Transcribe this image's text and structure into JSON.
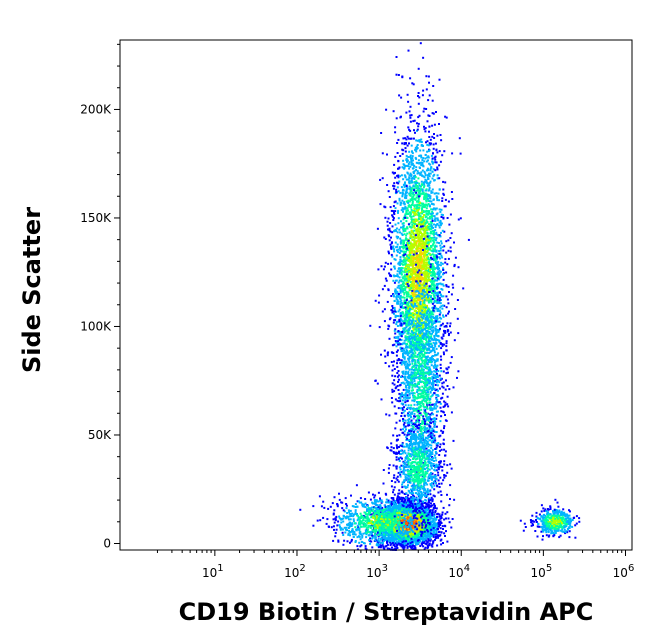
{
  "chart_data": {
    "type": "scatter",
    "title": "",
    "xlabel": "CD19 Biotin / Streptavidin APC",
    "ylabel": "Side Scatter",
    "x_scale": "log",
    "xlim": [
      0.7,
      1200000
    ],
    "ylim": [
      -3000,
      232000
    ],
    "x_ticks": [
      {
        "value": 10,
        "base": "10",
        "exp": "1"
      },
      {
        "value": 100,
        "base": "10",
        "exp": "2"
      },
      {
        "value": 1000,
        "base": "10",
        "exp": "3"
      },
      {
        "value": 10000,
        "base": "10",
        "exp": "4"
      },
      {
        "value": 100000,
        "base": "10",
        "exp": "5"
      },
      {
        "value": 1000000,
        "base": "10",
        "exp": "6"
      }
    ],
    "y_ticks": [
      {
        "value": 0,
        "label": "0"
      },
      {
        "value": 50000,
        "label": "50K"
      },
      {
        "value": 100000,
        "label": "100K"
      },
      {
        "value": 150000,
        "label": "150K"
      },
      {
        "value": 200000,
        "label": "200K"
      }
    ],
    "grid": false,
    "legend": "none",
    "color_scale": [
      "#0000ff",
      "#00b4ff",
      "#00ffa0",
      "#b4ff00",
      "#ffd000",
      "#ff6000",
      "#e00000"
    ],
    "populations": [
      {
        "name": "",
        "x_center": 2200,
        "y_center": 9000,
        "x_spread_decades": 0.17,
        "y_spread": 4500,
        "count": 3800,
        "peak_level": 1.0
      },
      {
        "name": "",
        "x_center": 1000,
        "y_center": 10000,
        "x_spread_decades": 0.28,
        "y_spread": 6000,
        "count": 900,
        "peak_level": 0.45
      },
      {
        "name": "",
        "x_center": 3000,
        "y_center": 125000,
        "x_spread_decades": 0.16,
        "y_spread": 32000,
        "count": 3600,
        "peak_level": 0.65
      },
      {
        "name": "",
        "x_center": 3200,
        "y_center": 70000,
        "x_spread_decades": 0.15,
        "y_spread": 30000,
        "count": 1200,
        "peak_level": 0.35
      },
      {
        "name": "",
        "x_center": 3000,
        "y_center": 35000,
        "x_spread_decades": 0.14,
        "y_spread": 10000,
        "count": 700,
        "peak_level": 0.4
      },
      {
        "name": "",
        "x_center": 140000,
        "y_center": 10000,
        "x_spread_decades": 0.12,
        "y_spread": 3000,
        "count": 450,
        "peak_level": 0.55
      }
    ]
  }
}
